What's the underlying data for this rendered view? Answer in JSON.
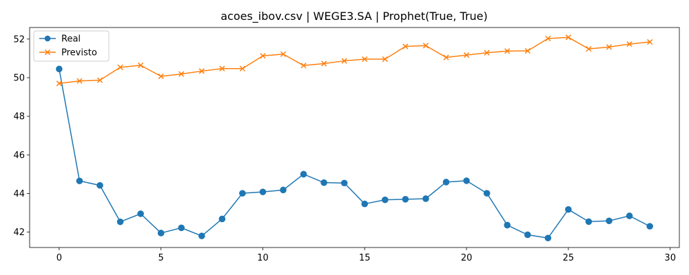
{
  "chart_data": {
    "type": "line",
    "title": "acoes_ibov.csv | WEGE3.SA | Prophet(True, True)",
    "xlabel": "",
    "ylabel": "",
    "xlim": [
      -1.45,
      30.45
    ],
    "ylim": [
      41.2,
      52.6
    ],
    "xticks": [
      0,
      5,
      10,
      15,
      20,
      25,
      30
    ],
    "yticks": [
      42,
      44,
      46,
      48,
      50,
      52
    ],
    "grid": false,
    "legend_position": "top-left",
    "x": [
      0,
      1,
      2,
      3,
      4,
      5,
      6,
      7,
      8,
      9,
      10,
      11,
      12,
      13,
      14,
      15,
      16,
      17,
      18,
      19,
      20,
      21,
      22,
      23,
      24,
      25,
      26,
      27,
      28,
      29
    ],
    "series": [
      {
        "name": "Real",
        "color": "#1f77b4",
        "marker": "circle",
        "values": [
          50.45,
          44.65,
          44.42,
          42.53,
          42.95,
          41.95,
          42.22,
          41.8,
          42.68,
          44.01,
          44.08,
          44.18,
          45.0,
          44.56,
          44.54,
          43.46,
          43.67,
          43.7,
          43.73,
          44.59,
          44.66,
          44.01,
          42.36,
          41.86,
          41.69,
          43.17,
          42.54,
          42.58,
          42.84,
          42.3
        ]
      },
      {
        "name": "Previsto",
        "color": "#ff7f0e",
        "marker": "x",
        "values": [
          49.7,
          49.83,
          49.87,
          50.54,
          50.64,
          50.07,
          50.19,
          50.34,
          50.47,
          50.47,
          51.13,
          51.22,
          50.63,
          50.73,
          50.87,
          50.96,
          50.96,
          51.62,
          51.66,
          51.05,
          51.17,
          51.29,
          51.38,
          51.39,
          52.03,
          52.09,
          51.49,
          51.59,
          51.74,
          51.85
        ]
      }
    ]
  }
}
